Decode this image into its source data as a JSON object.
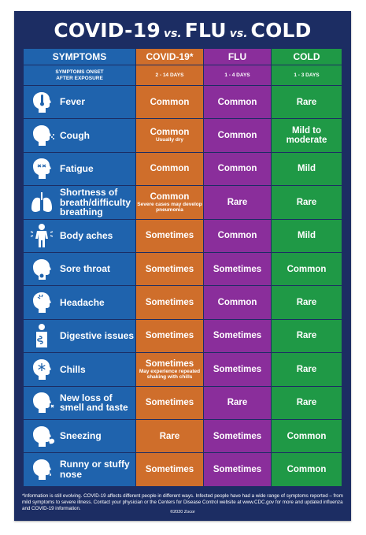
{
  "title": {
    "word1": "COVID-19",
    "vs1": "vs.",
    "word2": "FLU",
    "vs2": "vs.",
    "word3": "COLD"
  },
  "headers": [
    "SYMPTOMS",
    "COVID-19*",
    "FLU",
    "COLD"
  ],
  "onset": {
    "label_line1": "SYMPTOMS ONSET",
    "label_line2": "AFTER EXPOSURE",
    "covid": "2 - 14 DAYS",
    "flu": "1 - 4 DAYS",
    "cold": "1 - 3 DAYS"
  },
  "colors": {
    "background": "#1c2d63",
    "symptoms": "#1f63ad",
    "covid": "#cf6e2b",
    "flu": "#8a2e9b",
    "cold": "#1f9946"
  },
  "rows": [
    {
      "symptom": "Fever",
      "icon": "fever-head-icon",
      "covid": "Common",
      "covid_note": "",
      "flu": "Common",
      "cold": "Rare"
    },
    {
      "symptom": "Cough",
      "icon": "cough-head-icon",
      "covid": "Common",
      "covid_note": "Usually dry",
      "flu": "Common",
      "cold": "Mild to moderate"
    },
    {
      "symptom": "Fatigue",
      "icon": "fatigue-head-icon",
      "covid": "Common",
      "covid_note": "",
      "flu": "Common",
      "cold": "Mild"
    },
    {
      "symptom": "Shortness of breath/difficulty breathing",
      "icon": "lungs-icon",
      "covid": "Common",
      "covid_note": "Severe cases may develop pneumonia",
      "flu": "Rare",
      "cold": "Rare"
    },
    {
      "symptom": "Body aches",
      "icon": "body-aches-icon",
      "covid": "Sometimes",
      "covid_note": "",
      "flu": "Common",
      "cold": "Mild"
    },
    {
      "symptom": "Sore throat",
      "icon": "sore-throat-icon",
      "covid": "Sometimes",
      "covid_note": "",
      "flu": "Sometimes",
      "cold": "Common"
    },
    {
      "symptom": "Headache",
      "icon": "headache-icon",
      "covid": "Sometimes",
      "covid_note": "",
      "flu": "Common",
      "cold": "Rare"
    },
    {
      "symptom": "Digestive issues",
      "icon": "digestive-icon",
      "covid": "Sometimes",
      "covid_note": "",
      "flu": "Sometimes",
      "cold": "Rare"
    },
    {
      "symptom": "Chills",
      "icon": "chills-head-icon",
      "covid": "Sometimes",
      "covid_note": "May experience repeated shaking with chills",
      "flu": "Sometimes",
      "cold": "Rare"
    },
    {
      "symptom": "New loss of smell and taste",
      "icon": "smell-taste-icon",
      "covid": "Sometimes",
      "covid_note": "",
      "flu": "Rare",
      "cold": "Rare"
    },
    {
      "symptom": "Sneezing",
      "icon": "sneezing-icon",
      "covid": "Rare",
      "covid_note": "",
      "flu": "Sometimes",
      "cold": "Common"
    },
    {
      "symptom": "Runny or stuffy nose",
      "icon": "runny-nose-icon",
      "covid": "Sometimes",
      "covid_note": "",
      "flu": "Sometimes",
      "cold": "Common"
    }
  ],
  "footnote": "*Information is still evolving. COVID-19 affects different people in different ways. Infected people have had a wide range of symptoms reported – from mild symptoms to severe illness. Contact your physician or the Centers for Disease Control website at www.CDC.gov for more and updated influenza and COVID-19 information.",
  "copyright": "©2020 Zocor"
}
